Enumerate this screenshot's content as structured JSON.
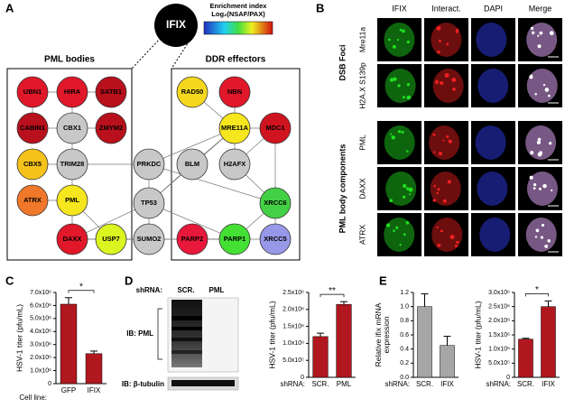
{
  "panels": [
    "A",
    "B",
    "C",
    "D",
    "E"
  ],
  "diagram": {
    "center": "IFIX",
    "colorbar": {
      "title": "Enrichment index",
      "subtitle": "Log₂(NSAF/PAX)"
    },
    "groups": [
      "PML bodies",
      "DDR effectors"
    ],
    "nodes": [
      {
        "label": "UBN1",
        "color": "#e0182a"
      },
      {
        "label": "HIRA",
        "color": "#e0182a"
      },
      {
        "label": "SATB1",
        "color": "#b8101c"
      },
      {
        "label": "CABIN1",
        "color": "#b8101c"
      },
      {
        "label": "CBX1",
        "color": "#c8c8c8"
      },
      {
        "label": "ZMYM2",
        "color": "#b8101c"
      },
      {
        "label": "CBX5",
        "color": "#f5c21c"
      },
      {
        "label": "TRIM28",
        "color": "#c8c8c8"
      },
      {
        "label": "ATRX",
        "color": "#f0782a"
      },
      {
        "label": "PML",
        "color": "#f5e61e"
      },
      {
        "label": "DAXX",
        "color": "#e0182a"
      },
      {
        "label": "USP7",
        "color": "#daf520"
      },
      {
        "label": "PRKDC",
        "color": "#c8c8c8"
      },
      {
        "label": "TP53",
        "color": "#c8c8c8"
      },
      {
        "label": "SUMO2",
        "color": "#c8c8c8"
      },
      {
        "label": "RAD50",
        "color": "#f5d81e"
      },
      {
        "label": "NBN",
        "color": "#e0182a"
      },
      {
        "label": "MRE11A",
        "color": "#f5e61e"
      },
      {
        "label": "MDC1",
        "color": "#d0141f"
      },
      {
        "label": "BLM",
        "color": "#c8c8c8"
      },
      {
        "label": "H2AFX",
        "color": "#c8c8c8"
      },
      {
        "label": "XRCC6",
        "color": "#44d044"
      },
      {
        "label": "PARP2",
        "color": "#e8183a"
      },
      {
        "label": "PARP1",
        "color": "#44e034"
      },
      {
        "label": "XRCC5",
        "color": "#9898e8"
      }
    ]
  },
  "microscopy": {
    "columns": [
      "IFIX",
      "Interact.",
      "DAPI",
      "Merge"
    ],
    "groups": [
      {
        "label": "DSB Foci",
        "rows": [
          "Mre11a",
          "H2A.X S139p"
        ]
      },
      {
        "label": "PML body components",
        "rows": [
          "PML",
          "DAXX",
          "ATRX"
        ]
      }
    ]
  },
  "blot": {
    "shrna_label": "shRNA:",
    "lanes": [
      "SCR.",
      "PML"
    ],
    "rows": [
      "IB: PML",
      "IB: β-tubulin"
    ]
  },
  "chart_data": [
    {
      "type": "bar",
      "y_label": [
        "HSV-1 titer (pfu/mL)"
      ],
      "x_prefix": "Cell line:",
      "categories": [
        "GFP",
        "IFIX"
      ],
      "values": [
        6100000,
        2300000
      ],
      "errors": [
        500000,
        200000
      ],
      "color": "#b0171f",
      "ylim": [
        0,
        7000000
      ],
      "yticks": [
        0,
        {
          "value": 1000000,
          "label": "1.0x10⁶"
        },
        {
          "value": 2000000,
          "label": "2.0x10⁶"
        },
        {
          "value": 3000000,
          "label": "3.0x10⁶"
        },
        {
          "value": 4000000,
          "label": "4.0x10⁶"
        },
        {
          "value": 5000000,
          "label": "5.0x10⁶"
        },
        {
          "value": 6000000,
          "label": "6.0x10⁶"
        },
        {
          "value": 7000000,
          "label": "7.0x10⁶"
        }
      ],
      "annotation": "*"
    },
    {
      "type": "bar",
      "y_label": [
        "HSV-1 titer (pfu/mL)"
      ],
      "x_prefix": "shRNA:",
      "categories": [
        "SCR.",
        "PML"
      ],
      "values": [
        1200000,
        2150000
      ],
      "errors": [
        100000,
        80000
      ],
      "color": "#b0171f",
      "ylim": [
        0,
        2500000
      ],
      "yticks": [
        0,
        {
          "value": 500000,
          "label": "5.0x10⁵"
        },
        {
          "value": 1000000,
          "label": "1.0x10⁶"
        },
        {
          "value": 1500000,
          "label": "1.5x10⁶"
        },
        {
          "value": 2000000,
          "label": "2.0x10⁶"
        },
        {
          "value": 2500000,
          "label": "2.5x10⁶"
        }
      ],
      "annotation": "**"
    },
    {
      "type": "bar",
      "y_label": [
        "Relative ifix mRNA",
        "expression"
      ],
      "x_prefix": "shRNA:",
      "categories": [
        "SCR.",
        "IFIX"
      ],
      "values": [
        1.0,
        0.45
      ],
      "errors": [
        0.18,
        0.13
      ],
      "color": "#a6a6a6",
      "ylim": [
        0,
        1.2
      ],
      "yticks": [
        {
          "value": 0,
          "label": "0.0"
        },
        0.2,
        0.4,
        0.6,
        0.8,
        {
          "value": 1,
          "label": "1.0"
        },
        1.2
      ]
    },
    {
      "type": "bar",
      "y_label": [
        "HSV-1 titer (pfu/mL)"
      ],
      "x_prefix": "shRNA:",
      "categories": [
        "SCR.",
        "IFIX"
      ],
      "values": [
        1350000,
        2500000
      ],
      "errors": [
        30000,
        200000
      ],
      "color": "#b0171f",
      "ylim": [
        0,
        3000000
      ],
      "yticks": [
        0,
        {
          "value": 500000,
          "label": "5.0x10⁵"
        },
        {
          "value": 1000000,
          "label": "1.0x10⁶"
        },
        {
          "value": 1500000,
          "label": "1.5x10⁶"
        },
        {
          "value": 2000000,
          "label": "2.0x10⁶"
        },
        {
          "value": 2500000,
          "label": "2.5x10⁶"
        },
        {
          "value": 3000000,
          "label": "3.0x10⁶"
        }
      ],
      "annotation": "*"
    }
  ]
}
